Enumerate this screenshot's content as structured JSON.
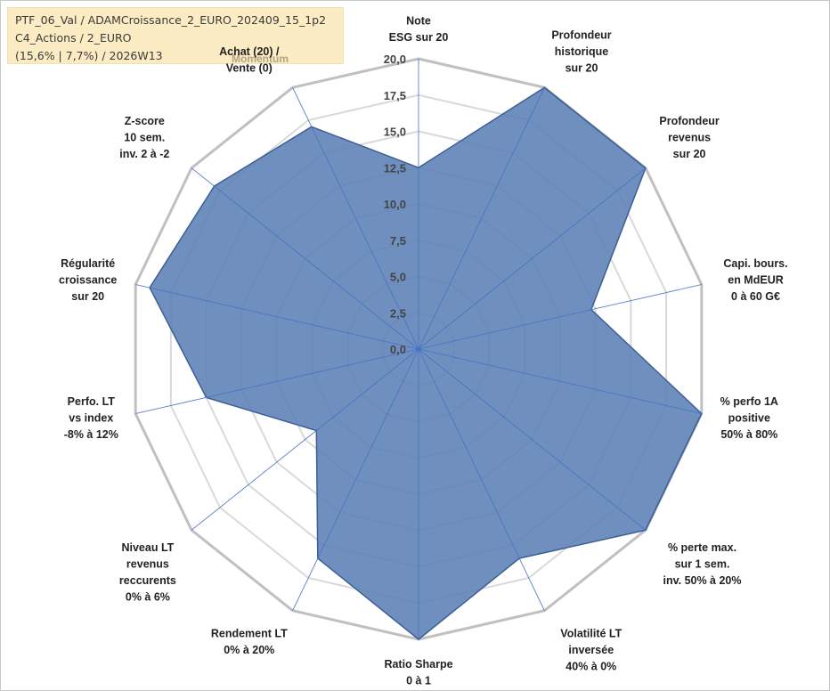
{
  "header": {
    "line1": "PTF_06_Val / ADAMCroissance_2_EURO_202409_15_1p2",
    "line2": "C4_Actions / 2_EURO",
    "line3": "(15,6% | 7,7%) / 2026W13"
  },
  "colors": {
    "fill": "#5b80b6",
    "stroke": "#3d5f95",
    "spoke": "#4472c4",
    "grid_outer": "#c0c0c0",
    "grid_inner": "#d9d9d9"
  },
  "chart_data": {
    "type": "radar",
    "title": "",
    "rmin": 0,
    "rmax": 20,
    "tick_labels": [
      "0,0",
      "2,5",
      "5,0",
      "7,5",
      "10,0",
      "12,5",
      "15,0",
      "17,5",
      "20,0"
    ],
    "extra_label": "Momentum",
    "axes": [
      {
        "lines": [
          "Note",
          "ESG sur 20"
        ],
        "value": 12.5
      },
      {
        "lines": [
          "Profondeur",
          "historique",
          "sur 20"
        ],
        "value": 20.0
      },
      {
        "lines": [
          "Profondeur",
          "revenus",
          "sur 20"
        ],
        "value": 20.0
      },
      {
        "lines": [
          "Capi. bours.",
          "en MdEUR",
          "0 à 60 G€"
        ],
        "value": 12.2
      },
      {
        "lines": [
          "% perfo 1A",
          "positive",
          "50% à 80%"
        ],
        "value": 20.0
      },
      {
        "lines": [
          "% perte max.",
          "sur 1 sem.",
          "inv. 50% à 20%"
        ],
        "value": 20.0
      },
      {
        "lines": [
          "Volatilité LT",
          "inversée",
          "40% à 0%"
        ],
        "value": 16.0
      },
      {
        "lines": [
          "Ratio Sharpe",
          "0 à 1"
        ],
        "value": 20.0
      },
      {
        "lines": [
          "Rendement LT",
          "0% à 20%"
        ],
        "value": 16.0
      },
      {
        "lines": [
          "Niveau LT",
          "revenus",
          "reccurents",
          "0% à 6%"
        ],
        "value": 9.0
      },
      {
        "lines": [
          "Perfo. LT",
          "vs index",
          "-8% à 12%"
        ],
        "value": 15.0
      },
      {
        "lines": [
          "Régularité",
          "croissance",
          "sur 20"
        ],
        "value": 19.0
      },
      {
        "lines": [
          "Z-score",
          "10 sem.",
          "inv. 2 à -2"
        ],
        "value": 18.0
      },
      {
        "lines": [
          "Achat (20) /",
          "Vente (0)"
        ],
        "value": 17.0
      }
    ]
  }
}
